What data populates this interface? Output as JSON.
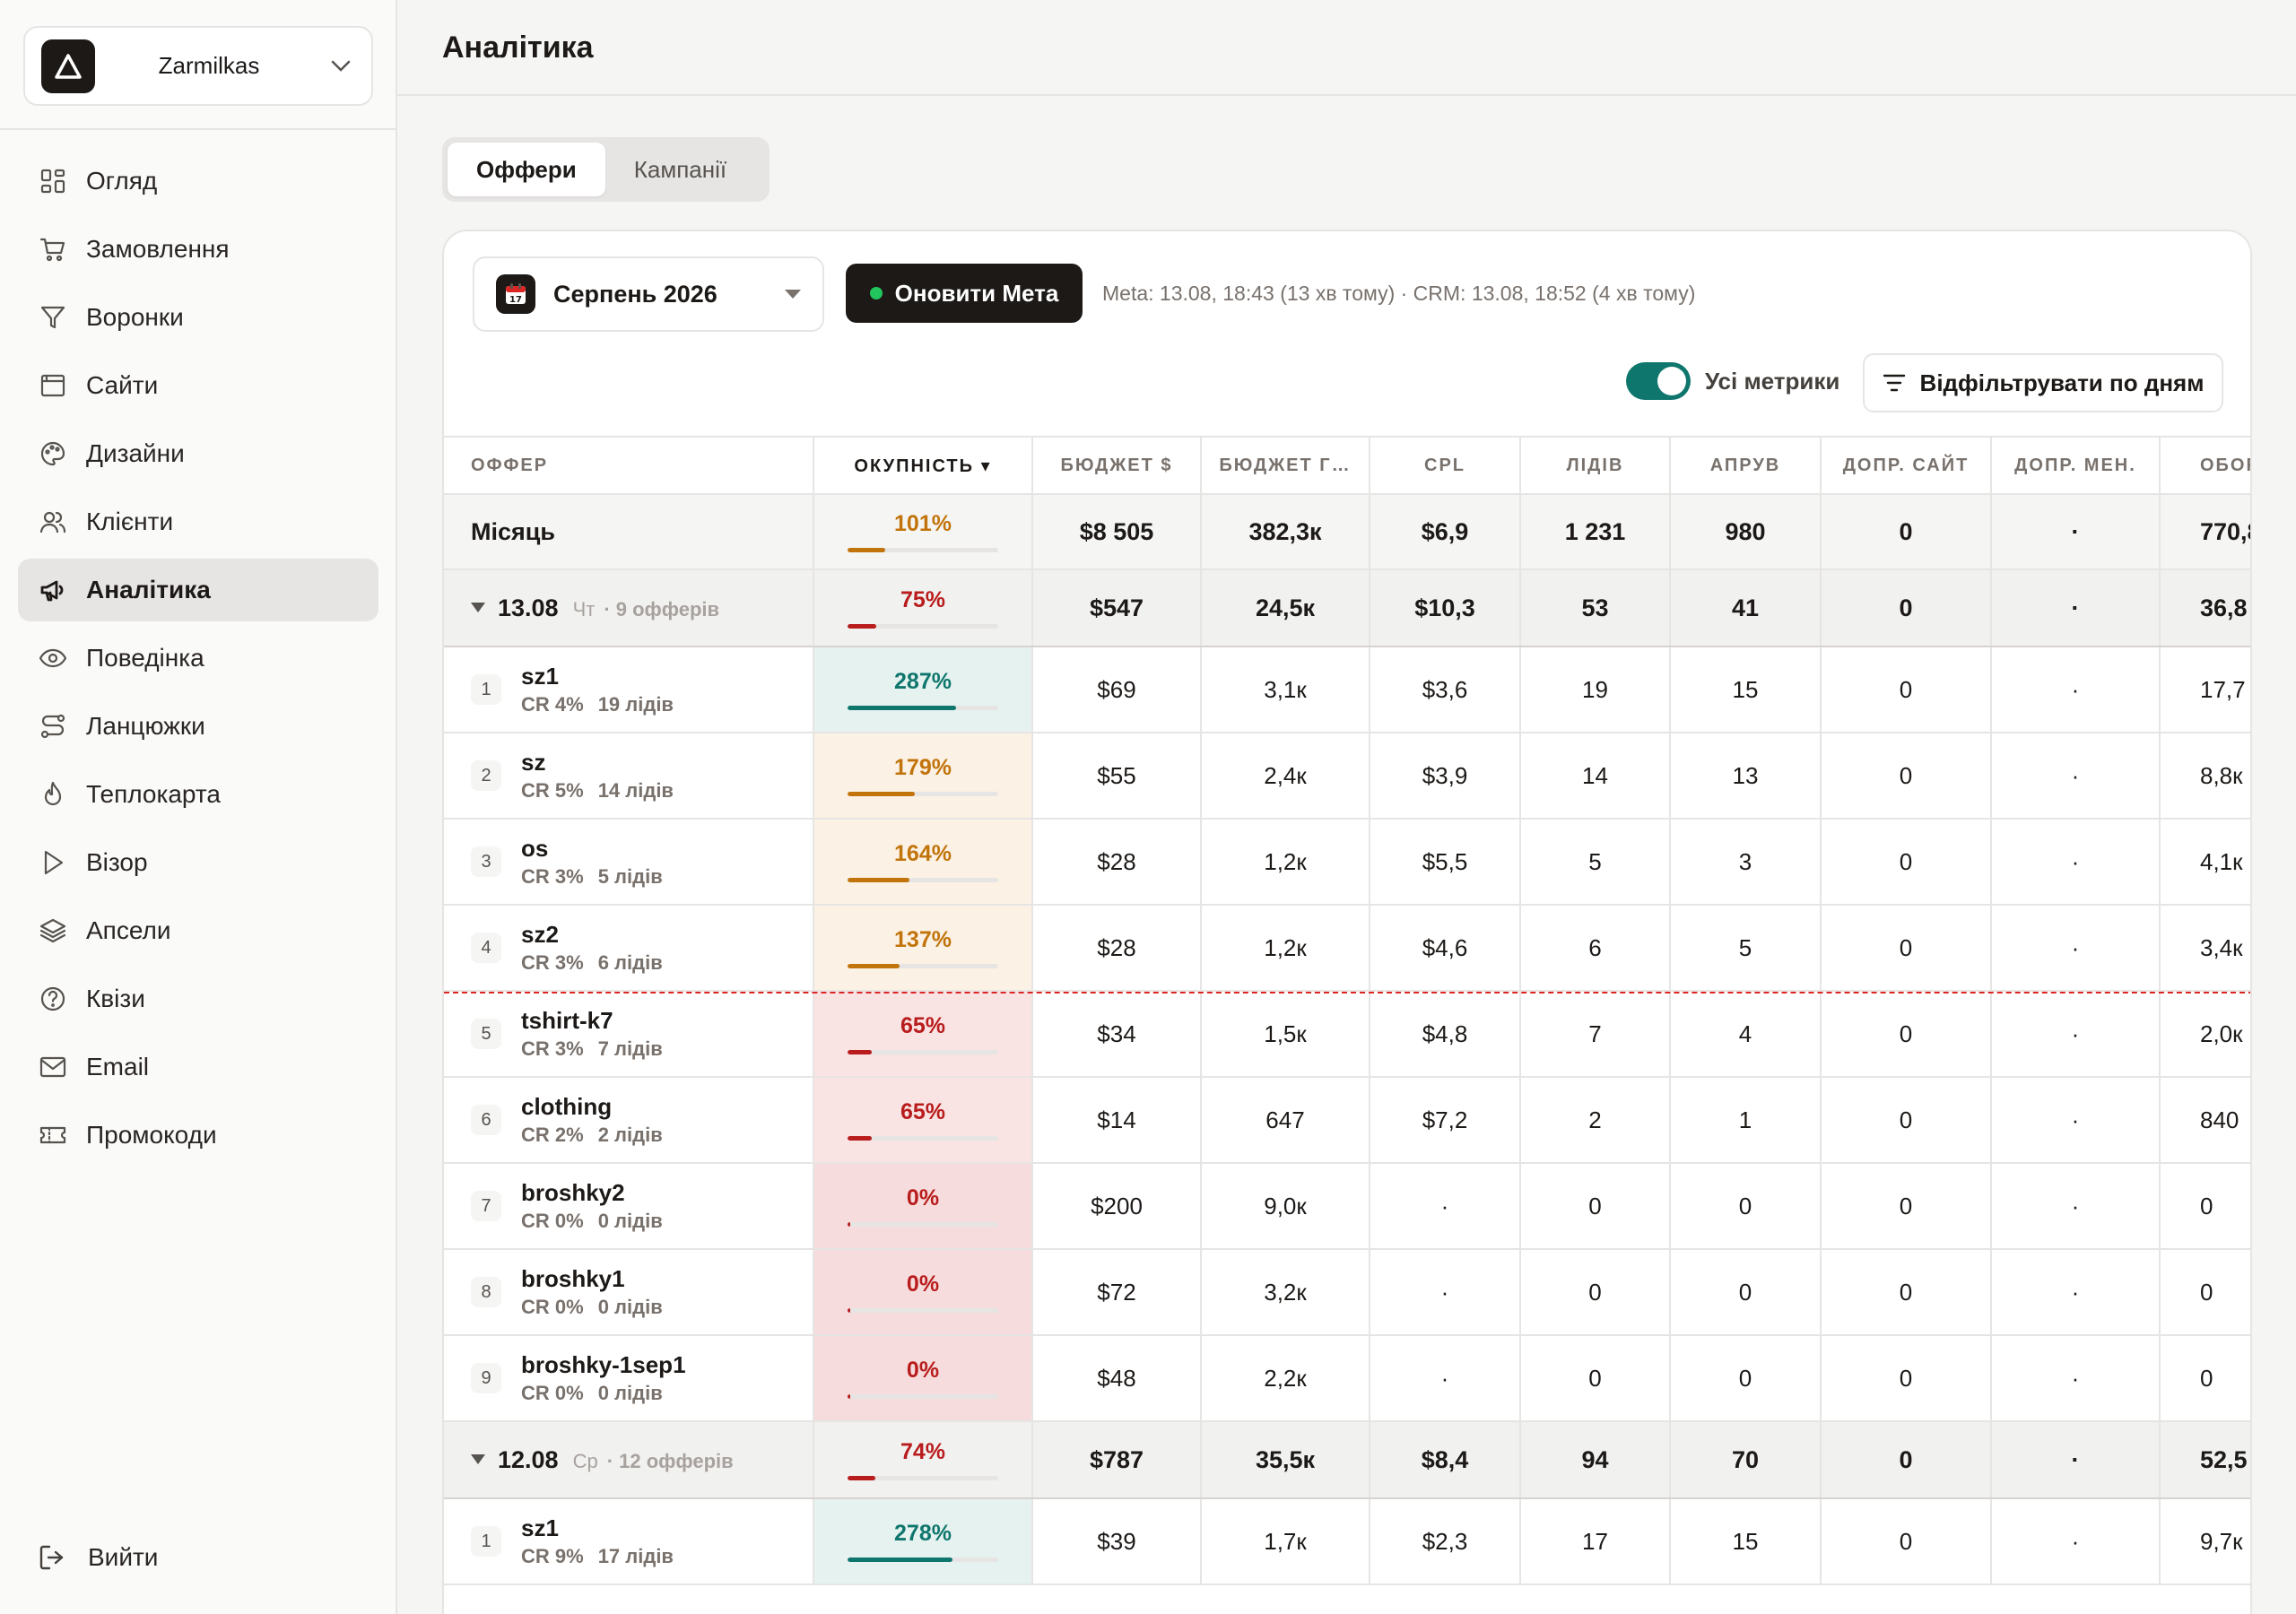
{
  "workspace": {
    "name": "Zarmilkas"
  },
  "nav": [
    {
      "label": "Огляд",
      "icon": "grid-icon"
    },
    {
      "label": "Замовлення",
      "icon": "cart-icon"
    },
    {
      "label": "Воронки",
      "icon": "funnel-icon"
    },
    {
      "label": "Сайти",
      "icon": "browser-icon"
    },
    {
      "label": "Дизайни",
      "icon": "palette-icon"
    },
    {
      "label": "Клієнти",
      "icon": "users-icon"
    },
    {
      "label": "Аналітика",
      "icon": "megaphone-icon",
      "active": true
    },
    {
      "label": "Поведінка",
      "icon": "eye-icon"
    },
    {
      "label": "Ланцюжки",
      "icon": "route-icon"
    },
    {
      "label": "Теплокарта",
      "icon": "flame-icon"
    },
    {
      "label": "Візор",
      "icon": "play-icon"
    },
    {
      "label": "Апсели",
      "icon": "layers-icon"
    },
    {
      "label": "Квізи",
      "icon": "help-circle-icon"
    },
    {
      "label": "Email",
      "icon": "mail-icon"
    },
    {
      "label": "Промокоди",
      "icon": "ticket-icon"
    }
  ],
  "logout_label": "Вийти",
  "page_title": "Аналітика",
  "tabs": [
    "Оффери",
    "Кампанії"
  ],
  "toolbar": {
    "month": "Серпень 2026",
    "refresh_label": "Оновити Мета",
    "sync_info": "Meta: 13.08, 18:43 (13 хв тому) · CRM: 13.08, 18:52 (4 хв тому)",
    "toggle_label": "Усі метрики",
    "toggle_on": true,
    "filter_label": "Відфільтрувати по дням"
  },
  "columns": [
    "ОФФЕР",
    "ОКУПНІСТЬ ▾",
    "БЮДЖЕТ $",
    "БЮДЖЕТ Г…",
    "CPL",
    "ЛІДІВ",
    "АПРУВ",
    "ДОПР. САЙТ",
    "ДОПР. МЕН.",
    "ОБОРОТ"
  ],
  "month_row": {
    "label": "Місяць",
    "roi": "101%",
    "roi_pct": 101,
    "budget_usd": "$8 505",
    "budget_uah": "382,3к",
    "cpl": "$6,9",
    "leads": "1 231",
    "approved": "980",
    "upsell_site": "0",
    "upsell_manager": "·",
    "turnover": "770,8"
  },
  "days": [
    {
      "date": "13.08",
      "dow": "Чт",
      "count": "· 9 офферів",
      "roi": "75%",
      "roi_pct": 75,
      "budget_usd": "$547",
      "budget_uah": "24,5к",
      "cpl": "$10,3",
      "leads": "53",
      "approved": "41",
      "upsell_site": "0",
      "upsell_manager": "·",
      "turnover": "36,8",
      "offers": [
        {
          "rank": "1",
          "name": "sz1",
          "cr": "CR 4%",
          "leads_label": "19 лідів",
          "roi": "287%",
          "roi_pct": 287,
          "budget_usd": "$69",
          "budget_uah": "3,1к",
          "cpl": "$3,6",
          "leads": "19",
          "approved": "15",
          "upsell_site": "0",
          "upsell_manager": "·",
          "turnover": "17,7"
        },
        {
          "rank": "2",
          "name": "sz",
          "cr": "CR 5%",
          "leads_label": "14 лідів",
          "roi": "179%",
          "roi_pct": 179,
          "budget_usd": "$55",
          "budget_uah": "2,4к",
          "cpl": "$3,9",
          "leads": "14",
          "approved": "13",
          "upsell_site": "0",
          "upsell_manager": "·",
          "turnover": "8,8к"
        },
        {
          "rank": "3",
          "name": "os",
          "cr": "CR 3%",
          "leads_label": "5 лідів",
          "roi": "164%",
          "roi_pct": 164,
          "budget_usd": "$28",
          "budget_uah": "1,2к",
          "cpl": "$5,5",
          "leads": "5",
          "approved": "3",
          "upsell_site": "0",
          "upsell_manager": "·",
          "turnover": "4,1к"
        },
        {
          "rank": "4",
          "name": "sz2",
          "cr": "CR 3%",
          "leads_label": "6 лідів",
          "roi": "137%",
          "roi_pct": 137,
          "budget_usd": "$28",
          "budget_uah": "1,2к",
          "cpl": "$4,6",
          "leads": "6",
          "approved": "5",
          "upsell_site": "0",
          "upsell_manager": "·",
          "turnover": "3,4к"
        },
        {
          "rank": "5",
          "name": "tshirt-k7",
          "cr": "CR 3%",
          "leads_label": "7 лідів",
          "roi": "65%",
          "roi_pct": 65,
          "budget_usd": "$34",
          "budget_uah": "1,5к",
          "cpl": "$4,8",
          "leads": "7",
          "approved": "4",
          "upsell_site": "0",
          "upsell_manager": "·",
          "turnover": "2,0к"
        },
        {
          "rank": "6",
          "name": "clothing",
          "cr": "CR 2%",
          "leads_label": "2 лідів",
          "roi": "65%",
          "roi_pct": 65,
          "budget_usd": "$14",
          "budget_uah": "647",
          "cpl": "$7,2",
          "leads": "2",
          "approved": "1",
          "upsell_site": "0",
          "upsell_manager": "·",
          "turnover": "840"
        },
        {
          "rank": "7",
          "name": "broshky2",
          "cr": "CR 0%",
          "leads_label": "0 лідів",
          "roi": "0%",
          "roi_pct": 0,
          "budget_usd": "$200",
          "budget_uah": "9,0к",
          "cpl": "·",
          "leads": "0",
          "approved": "0",
          "upsell_site": "0",
          "upsell_manager": "·",
          "turnover": "0"
        },
        {
          "rank": "8",
          "name": "broshky1",
          "cr": "CR 0%",
          "leads_label": "0 лідів",
          "roi": "0%",
          "roi_pct": 0,
          "budget_usd": "$72",
          "budget_uah": "3,2к",
          "cpl": "·",
          "leads": "0",
          "approved": "0",
          "upsell_site": "0",
          "upsell_manager": "·",
          "turnover": "0"
        },
        {
          "rank": "9",
          "name": "broshky-1sep1",
          "cr": "CR 0%",
          "leads_label": "0 лідів",
          "roi": "0%",
          "roi_pct": 0,
          "budget_usd": "$48",
          "budget_uah": "2,2к",
          "cpl": "·",
          "leads": "0",
          "approved": "0",
          "upsell_site": "0",
          "upsell_manager": "·",
          "turnover": "0"
        }
      ]
    },
    {
      "date": "12.08",
      "dow": "Ср",
      "count": "· 12 офферів",
      "roi": "74%",
      "roi_pct": 74,
      "budget_usd": "$787",
      "budget_uah": "35,5к",
      "cpl": "$8,4",
      "leads": "94",
      "approved": "70",
      "upsell_site": "0",
      "upsell_manager": "·",
      "turnover": "52,5",
      "offers": [
        {
          "rank": "1",
          "name": "sz1",
          "cr": "CR 9%",
          "leads_label": "17 лідів",
          "roi": "278%",
          "roi_pct": 278,
          "budget_usd": "$39",
          "budget_uah": "1,7к",
          "cpl": "$2,3",
          "leads": "17",
          "approved": "15",
          "upsell_site": "0",
          "upsell_manager": "·",
          "turnover": "9,7к"
        }
      ]
    }
  ],
  "colors": {
    "good": "#0f766e",
    "mid": "#c2740c",
    "bad": "#b91c1c",
    "accent": "#1c1917"
  }
}
